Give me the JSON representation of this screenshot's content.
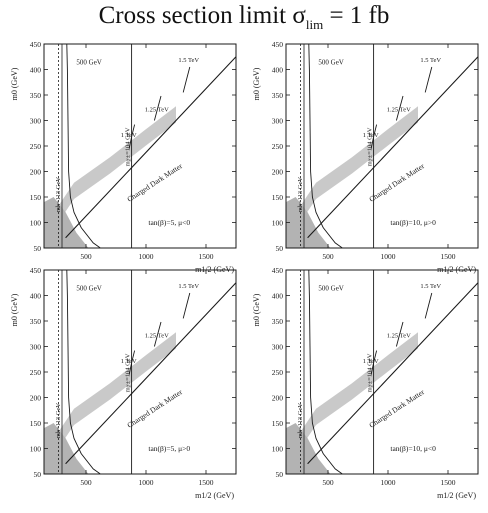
{
  "header": {
    "title_main": "Cross section limit σ",
    "title_sub": "lim",
    "title_tail": " = 1 fb"
  },
  "colors": {
    "ink": "#1a1a1a",
    "band": "#c9c9c9",
    "band_dark": "#b3b3b3"
  },
  "chart_data": [
    {
      "type": "line",
      "xlabel": "m1/2 (GeV)",
      "ylabel": "m0 (GeV)",
      "xlim": [
        150,
        1750
      ],
      "ylim": [
        50,
        450
      ],
      "xticks": [
        500,
        1000,
        1500
      ],
      "yticks": [
        50,
        100,
        150,
        200,
        250,
        300,
        350,
        400,
        450
      ],
      "grid": false,
      "annotations": {
        "scan_top": "500 GeV",
        "mh_line": "mh=113 GeV",
        "mx_line": "mχ±=104 GeV",
        "tev1": "1 TeV",
        "tev125": "1.25 TeV",
        "tev15": "1.5 TeV",
        "cdm": "Charged Dark Matter",
        "params": "tan(β)=5, μ<0"
      },
      "series": [
        {
          "name": "charged-boundary",
          "x": [
            330,
            1750
          ],
          "y": [
            70,
            425
          ]
        },
        {
          "name": "contour-500GeV",
          "x": [
            340,
            345,
            350,
            355,
            370,
            400,
            460,
            560,
            620
          ],
          "y": [
            450,
            400,
            300,
            200,
            150,
            120,
            90,
            60,
            50
          ]
        },
        {
          "name": "contour-1TeV",
          "x": [
            860,
            880,
            905
          ],
          "y": [
            245,
            268,
            292
          ]
        },
        {
          "name": "contour-1.25TeV",
          "x": [
            1070,
            1095,
            1125
          ],
          "y": [
            300,
            322,
            348
          ]
        },
        {
          "name": "contour-1.5TeV",
          "x": [
            1310,
            1335,
            1365
          ],
          "y": [
            355,
            378,
            405
          ]
        },
        {
          "name": "band-center",
          "x": [
            200,
            400,
            700,
            1000,
            1250
          ],
          "y": [
            90,
            160,
            210,
            265,
            310
          ]
        }
      ]
    },
    {
      "type": "line",
      "xlabel": "m1/2 (GeV)",
      "ylabel": "m0 (GeV)",
      "xlim": [
        150,
        1750
      ],
      "ylim": [
        50,
        450
      ],
      "xticks": [
        500,
        1000,
        1500
      ],
      "yticks": [
        50,
        100,
        150,
        200,
        250,
        300,
        350,
        400,
        450
      ],
      "grid": false,
      "annotations": {
        "scan_top": "500 GeV",
        "mh_line": "mh=113 GeV",
        "mx_line": "mχ±=104 GeV",
        "tev1": "1 TeV",
        "tev125": "1.25 TeV",
        "tev15": "1.5 TeV",
        "cdm": "Charged Dark Matter",
        "params": "tan(β)=10, μ>0"
      },
      "series": [
        {
          "name": "charged-boundary",
          "x": [
            330,
            1750
          ],
          "y": [
            70,
            425
          ]
        },
        {
          "name": "contour-500GeV",
          "x": [
            340,
            345,
            350,
            355,
            370,
            400,
            460,
            560,
            620
          ],
          "y": [
            450,
            400,
            300,
            200,
            150,
            120,
            90,
            60,
            50
          ]
        },
        {
          "name": "contour-1TeV",
          "x": [
            860,
            880,
            905
          ],
          "y": [
            245,
            268,
            292
          ]
        },
        {
          "name": "contour-1.25TeV",
          "x": [
            1070,
            1095,
            1125
          ],
          "y": [
            300,
            322,
            348
          ]
        },
        {
          "name": "contour-1.5TeV",
          "x": [
            1310,
            1335,
            1365
          ],
          "y": [
            355,
            378,
            405
          ]
        },
        {
          "name": "band-center",
          "x": [
            200,
            400,
            700,
            1000,
            1250
          ],
          "y": [
            90,
            160,
            210,
            265,
            310
          ]
        }
      ]
    },
    {
      "type": "line",
      "xlabel": "m1/2 (GeV)",
      "ylabel": "m0 (GeV)",
      "xlim": [
        150,
        1750
      ],
      "ylim": [
        50,
        450
      ],
      "xticks": [
        500,
        1000,
        1500
      ],
      "yticks": [
        50,
        100,
        150,
        200,
        250,
        300,
        350,
        400,
        450
      ],
      "grid": false,
      "annotations": {
        "scan_top": "500 GeV",
        "mh_line": "mh=113 GeV",
        "mx_line": "mχ±=104 GeV",
        "tev1": "1 TeV",
        "tev125": "1.25 TeV",
        "tev15": "1.5 TeV",
        "cdm": "Charged Dark Matter",
        "params": "tan(β)=5, μ>0"
      },
      "series": [
        {
          "name": "charged-boundary",
          "x": [
            330,
            1750
          ],
          "y": [
            70,
            425
          ]
        },
        {
          "name": "contour-500GeV",
          "x": [
            340,
            345,
            350,
            355,
            370,
            400,
            460,
            560,
            620
          ],
          "y": [
            450,
            400,
            300,
            200,
            150,
            120,
            90,
            60,
            50
          ]
        },
        {
          "name": "contour-1TeV",
          "x": [
            860,
            880,
            905
          ],
          "y": [
            245,
            268,
            292
          ]
        },
        {
          "name": "contour-1.25TeV",
          "x": [
            1070,
            1095,
            1125
          ],
          "y": [
            300,
            322,
            348
          ]
        },
        {
          "name": "contour-1.5TeV",
          "x": [
            1310,
            1335,
            1365
          ],
          "y": [
            355,
            378,
            405
          ]
        },
        {
          "name": "band-center",
          "x": [
            200,
            400,
            700,
            1000,
            1250
          ],
          "y": [
            90,
            160,
            210,
            265,
            310
          ]
        }
      ]
    },
    {
      "type": "line",
      "xlabel": "m1/2 (GeV)",
      "ylabel": "m0 (GeV)",
      "xlim": [
        150,
        1750
      ],
      "ylim": [
        50,
        450
      ],
      "xticks": [
        500,
        1000,
        1500
      ],
      "yticks": [
        50,
        100,
        150,
        200,
        250,
        300,
        350,
        400,
        450
      ],
      "grid": false,
      "annotations": {
        "scan_top": "500 GeV",
        "mh_line": "mh=113 GeV",
        "mx_line": "mχ±=104 GeV",
        "tev1": "1 TeV",
        "tev125": "1.25 TeV",
        "tev15": "1.5 TeV",
        "cdm": "Charged Dark Matter",
        "params": "tan(β)=10, μ<0"
      },
      "series": [
        {
          "name": "charged-boundary",
          "x": [
            330,
            1750
          ],
          "y": [
            70,
            425
          ]
        },
        {
          "name": "contour-500GeV",
          "x": [
            340,
            345,
            350,
            355,
            370,
            400,
            460,
            560,
            620
          ],
          "y": [
            450,
            400,
            300,
            200,
            150,
            120,
            90,
            60,
            50
          ]
        },
        {
          "name": "contour-1TeV",
          "x": [
            860,
            880,
            905
          ],
          "y": [
            245,
            268,
            292
          ]
        },
        {
          "name": "contour-1.25TeV",
          "x": [
            1070,
            1095,
            1125
          ],
          "y": [
            300,
            322,
            348
          ]
        },
        {
          "name": "contour-1.5TeV",
          "x": [
            1310,
            1335,
            1365
          ],
          "y": [
            355,
            378,
            405
          ]
        },
        {
          "name": "band-center",
          "x": [
            200,
            400,
            700,
            1000,
            1250
          ],
          "y": [
            90,
            160,
            210,
            265,
            310
          ]
        }
      ]
    }
  ]
}
